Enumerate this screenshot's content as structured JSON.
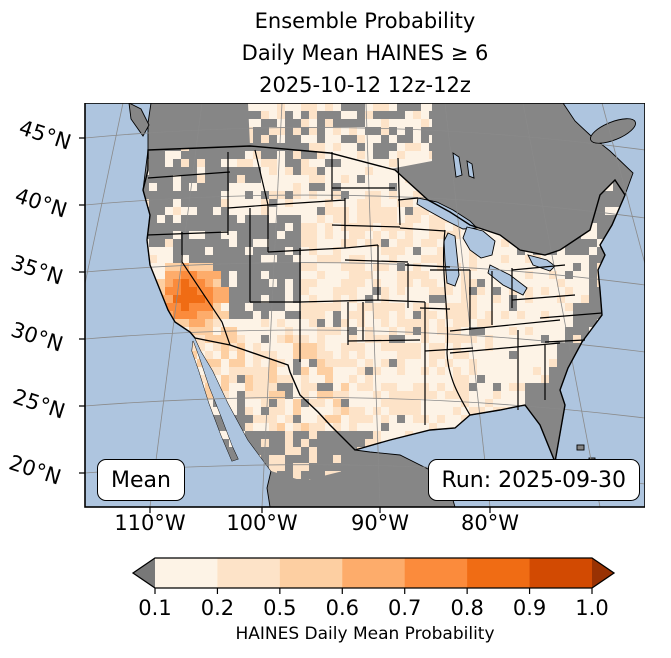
{
  "title": {
    "line1": "Ensemble Probability",
    "line2": "Daily Mean HAINES ≥ 6",
    "line3": "2025-10-12 12z-12z"
  },
  "map_panel": {
    "stat_badge": "Mean",
    "run_badge": "Run: 2025-09-30",
    "lat_labels": [
      "45°N",
      "40°N",
      "35°N",
      "30°N",
      "25°N",
      "20°N"
    ],
    "lon_labels": [
      "110°W",
      "100°W",
      "90°W",
      "80°W"
    ]
  },
  "colorbar": {
    "label": "HAINES Daily Mean Probability",
    "tick_labels": [
      "0.1",
      "0.2",
      "0.5",
      "0.6",
      "0.7",
      "0.8",
      "0.9",
      "1.0"
    ],
    "segment_colors": [
      "#fdf3e6",
      "#fde3c8",
      "#fdcfa2",
      "#fdac6b",
      "#fb8b3c",
      "#f06c14",
      "#d24a02"
    ],
    "under_arrow_color": "#787878",
    "over_arrow_color": "#993203"
  },
  "colors": {
    "background": "#ffffff",
    "ocean": "#aec5df",
    "lake": "#aec5df",
    "no_data_land": "#868686",
    "gridline": "#8a8a8a",
    "boundary": "#000000"
  },
  "chart_data": {
    "type": "heatmap",
    "title": "Ensemble Probability Daily Mean HAINES ≥ 6 2025-10-12 12z-12z",
    "statistic": "Mean",
    "model_run": "2025-09-30",
    "valid_period": "2025-10-12 12z-12z",
    "colorbar_label": "HAINES Daily Mean Probability",
    "probability_levels": [
      0.1,
      0.2,
      0.5,
      0.6,
      0.7,
      0.8,
      0.9,
      1.0
    ],
    "level_colors": [
      "#fdf3e6",
      "#fde3c8",
      "#fdcfa2",
      "#fdac6b",
      "#fb8b3c",
      "#f06c14",
      "#d24a02"
    ],
    "below_min_color": "gray (probability < 0.1 / no data)",
    "lat_ticks_deg_n": [
      45,
      40,
      35,
      30,
      25,
      20
    ],
    "lon_ticks_deg_w": [
      110,
      100,
      90,
      80
    ],
    "legend_position": "bottom horizontal colorbar with under/over arrows",
    "grid": "on",
    "notable_feature": "maximum probabilities (0.7-0.9 band) over southern California / southern Nevada / western Arizona; most of CONUS in 0.1-0.5 band; gray (no data) over Pacific Northwest, Great Basin, northern plains, Northeast, Florida and southeast coast"
  }
}
